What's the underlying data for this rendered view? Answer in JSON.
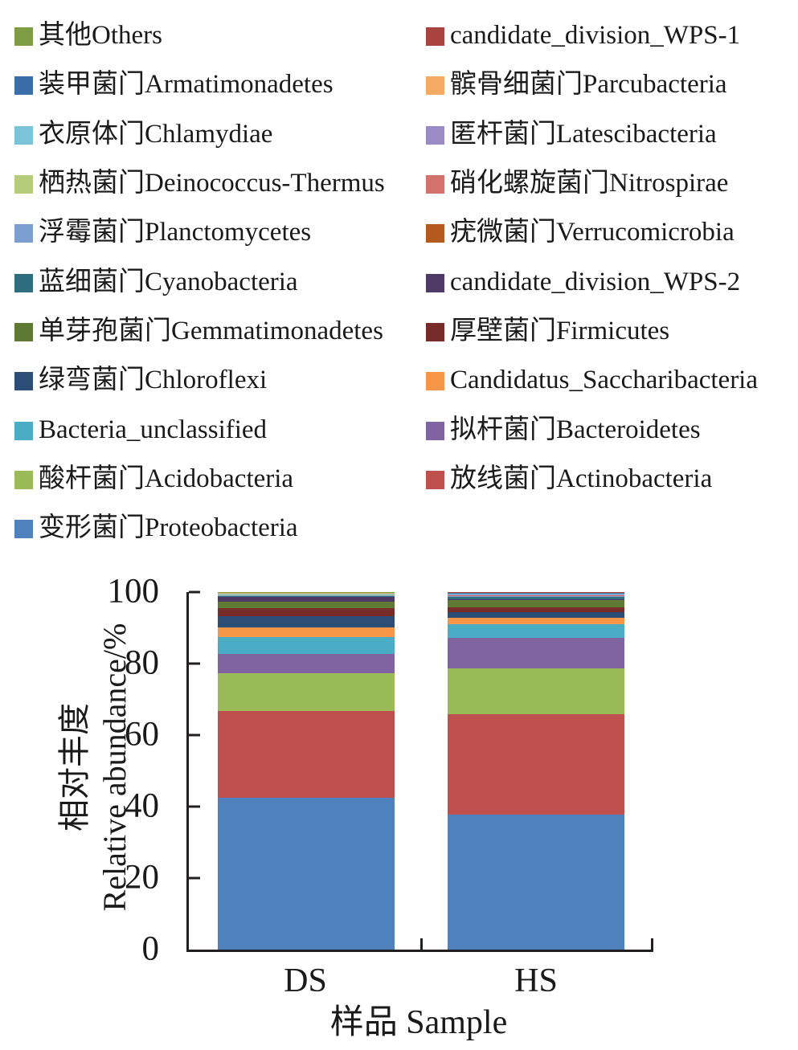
{
  "figure": {
    "background": "#ffffff",
    "text_color": "#1a1a1a",
    "axis_color": "#231f20"
  },
  "legend": {
    "items": [
      {
        "key": "others",
        "label": "其他Others",
        "color": "#7D9C43"
      },
      {
        "key": "wps1",
        "label": "candidate_division_WPS-1",
        "color": "#A8433F"
      },
      {
        "key": "armatimonadetes",
        "label": "装甲菌门Armatimonadetes",
        "color": "#3A6EA8"
      },
      {
        "key": "parcubacteria",
        "label": "髌骨细菌门Parcubacteria",
        "color": "#F5AB63"
      },
      {
        "key": "chlamydiae",
        "label": "衣原体门Chlamydiae",
        "color": "#7BC3D9"
      },
      {
        "key": "latescibacteria",
        "label": "匿杆菌门Latescibacteria",
        "color": "#9A8BC4"
      },
      {
        "key": "deinococcus_thermus",
        "label": "栖热菌门Deinococcus-Thermus",
        "color": "#B5CC7A"
      },
      {
        "key": "nitrospirae",
        "label": "硝化螺旋菌门Nitrospirae",
        "color": "#D3716D"
      },
      {
        "key": "planctomycetes",
        "label": "浮霉菌门Planctomycetes",
        "color": "#7B9FD1"
      },
      {
        "key": "verrucomicrobia",
        "label": "疣微菌门Verrucomicrobia",
        "color": "#B55A1F"
      },
      {
        "key": "cyanobacteria",
        "label": "蓝细菌门Cyanobacteria",
        "color": "#2E6E80"
      },
      {
        "key": "wps2",
        "label": "candidate_division_WPS-2",
        "color": "#4D3B66"
      },
      {
        "key": "gemmatimonadetes",
        "label": "单芽孢菌门Gemmatimonadetes",
        "color": "#5E7A33"
      },
      {
        "key": "firmicutes",
        "label": "厚壁菌门Firmicutes",
        "color": "#772C2A"
      },
      {
        "key": "chloroflexi",
        "label": "绿弯菌门Chloroflexi",
        "color": "#2C4D75"
      },
      {
        "key": "saccharibacteria",
        "label": "Candidatus_Saccharibacteria",
        "color": "#F79646"
      },
      {
        "key": "bacteria_unclassified",
        "label": "Bacteria_unclassified",
        "color": "#4BACC6"
      },
      {
        "key": "bacteroidetes",
        "label": "拟杆菌门Bacteroidetes",
        "color": "#8064A2"
      },
      {
        "key": "acidobacteria",
        "label": "酸杆菌门Acidobacteria",
        "color": "#9BBB59"
      },
      {
        "key": "actinobacteria",
        "label": "放线菌门Actinobacteria",
        "color": "#C0504D"
      },
      {
        "key": "proteobacteria",
        "label": "变形菌门Proteobacteria",
        "color": "#4F81BD"
      }
    ]
  },
  "chart_data": {
    "type": "bar",
    "stacked": true,
    "percent_stacked": true,
    "categories": [
      "DS",
      "HS"
    ],
    "xlabel": "样品 Sample",
    "ylabel_zh": "相对丰度",
    "ylabel_en": "Relative abundance/%",
    "ylim": [
      0,
      100
    ],
    "yticks": [
      0,
      20,
      40,
      60,
      80,
      100
    ],
    "grid": false,
    "legend_position": "top",
    "series": [
      {
        "name": "变形菌门Proteobacteria",
        "key": "proteobacteria",
        "color": "#4F81BD",
        "values": [
          42.4,
          37.7
        ]
      },
      {
        "name": "放线菌门Actinobacteria",
        "key": "actinobacteria",
        "color": "#C0504D",
        "values": [
          24.3,
          28.2
        ]
      },
      {
        "name": "酸杆菌门Acidobacteria",
        "key": "acidobacteria",
        "color": "#9BBB59",
        "values": [
          10.5,
          12.8
        ]
      },
      {
        "name": "拟杆菌门Bacteroidetes",
        "key": "bacteroidetes",
        "color": "#8064A2",
        "values": [
          5.4,
          8.4
        ]
      },
      {
        "name": "Bacteria_unclassified",
        "key": "bacteria_unclassified",
        "color": "#4BACC6",
        "values": [
          4.8,
          4.0
        ]
      },
      {
        "name": "Candidatus_Saccharibacteria",
        "key": "saccharibacteria",
        "color": "#F79646",
        "values": [
          2.7,
          1.7
        ]
      },
      {
        "name": "绿弯菌门Chloroflexi",
        "key": "chloroflexi",
        "color": "#2C4D75",
        "values": [
          3.1,
          1.6
        ]
      },
      {
        "name": "厚壁菌门Firmicutes",
        "key": "firmicutes",
        "color": "#772C2A",
        "values": [
          2.4,
          1.4
        ]
      },
      {
        "name": "单芽孢菌门Gemmatimonadetes",
        "key": "gemmatimonadetes",
        "color": "#5E7A33",
        "values": [
          1.8,
          1.9
        ]
      },
      {
        "name": "candidate_division_WPS-2",
        "key": "wps2",
        "color": "#4D3B66",
        "values": [
          1.2,
          0.3
        ]
      },
      {
        "name": "蓝细菌门Cyanobacteria",
        "key": "cyanobacteria",
        "color": "#2E6E80",
        "values": [
          0.2,
          0.6
        ]
      },
      {
        "name": "疣微菌门Verrucomicrobia",
        "key": "verrucomicrobia",
        "color": "#B55A1F",
        "values": [
          0.15,
          0.15
        ]
      },
      {
        "name": "浮霉菌门Planctomycetes",
        "key": "planctomycetes",
        "color": "#7B9FD1",
        "values": [
          0.15,
          0.15
        ]
      },
      {
        "name": "硝化螺旋菌门Nitrospirae",
        "key": "nitrospirae",
        "color": "#D3716D",
        "values": [
          0.12,
          0.15
        ]
      },
      {
        "name": "栖热菌门Deinococcus-Thermus",
        "key": "deinococcus_thermus",
        "color": "#B5CC7A",
        "values": [
          0.12,
          0.15
        ]
      },
      {
        "name": "匿杆菌门Latescibacteria",
        "key": "latescibacteria",
        "color": "#9A8BC4",
        "values": [
          0.12,
          0.15
        ]
      },
      {
        "name": "衣原体门Chlamydiae",
        "key": "chlamydiae",
        "color": "#7BC3D9",
        "values": [
          0.12,
          0.15
        ]
      },
      {
        "name": "髌骨细菌门Parcubacteria",
        "key": "parcubacteria",
        "color": "#F5AB63",
        "values": [
          0.12,
          0.15
        ]
      },
      {
        "name": "装甲菌门Armatimonadetes",
        "key": "armatimonadetes",
        "color": "#3A6EA8",
        "values": [
          0.1,
          0.15
        ]
      },
      {
        "name": "candidate_division_WPS-1",
        "key": "wps1",
        "color": "#A8433F",
        "values": [
          0.1,
          0.15
        ]
      },
      {
        "name": "其他Others",
        "key": "others",
        "color": "#7D9C43",
        "values": [
          0.1,
          0.05
        ]
      }
    ]
  }
}
